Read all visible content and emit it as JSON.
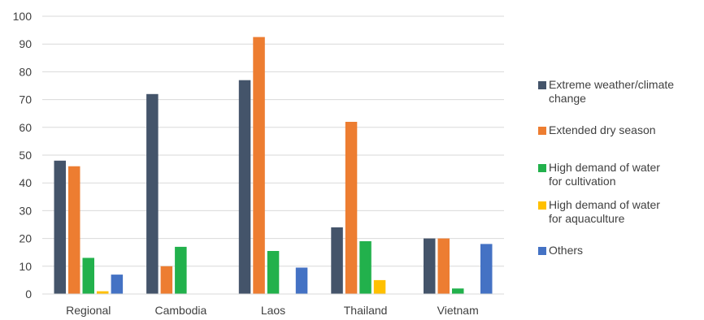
{
  "chart_data": {
    "type": "bar",
    "categories": [
      "Regional",
      "Cambodia",
      "Laos",
      "Thailand",
      "Vietnam"
    ],
    "series": [
      {
        "name": "Extreme weather/climate change",
        "legend_lines": [
          "Extreme weather/climate",
          "change"
        ],
        "color": "#44546a",
        "values": [
          48,
          72,
          77,
          24,
          20
        ]
      },
      {
        "name": "Extended dry season",
        "legend_lines": [
          "Extended dry season"
        ],
        "color": "#ed7d31",
        "values": [
          46,
          10,
          92.5,
          62,
          20
        ]
      },
      {
        "name": "High demand of water for cultivation",
        "legend_lines": [
          "High demand of water",
          "for cultivation"
        ],
        "color": "#22b14c",
        "values": [
          13,
          17,
          15.5,
          19,
          2
        ]
      },
      {
        "name": "High demand of water for aquaculture",
        "legend_lines": [
          "High demand of water",
          "for aquaculture"
        ],
        "color": "#ffc000",
        "values": [
          1,
          0,
          0,
          5,
          0
        ]
      },
      {
        "name": "Others",
        "legend_lines": [
          "Others"
        ],
        "color": "#4472c4",
        "values": [
          7,
          0,
          9.5,
          0,
          18
        ]
      }
    ],
    "yticks": [
      0,
      10,
      20,
      30,
      40,
      50,
      60,
      70,
      80,
      90,
      100
    ],
    "ylim": [
      0,
      100
    ],
    "grid": true,
    "legend_position": "right",
    "title": "",
    "xlabel": "",
    "ylabel": ""
  }
}
